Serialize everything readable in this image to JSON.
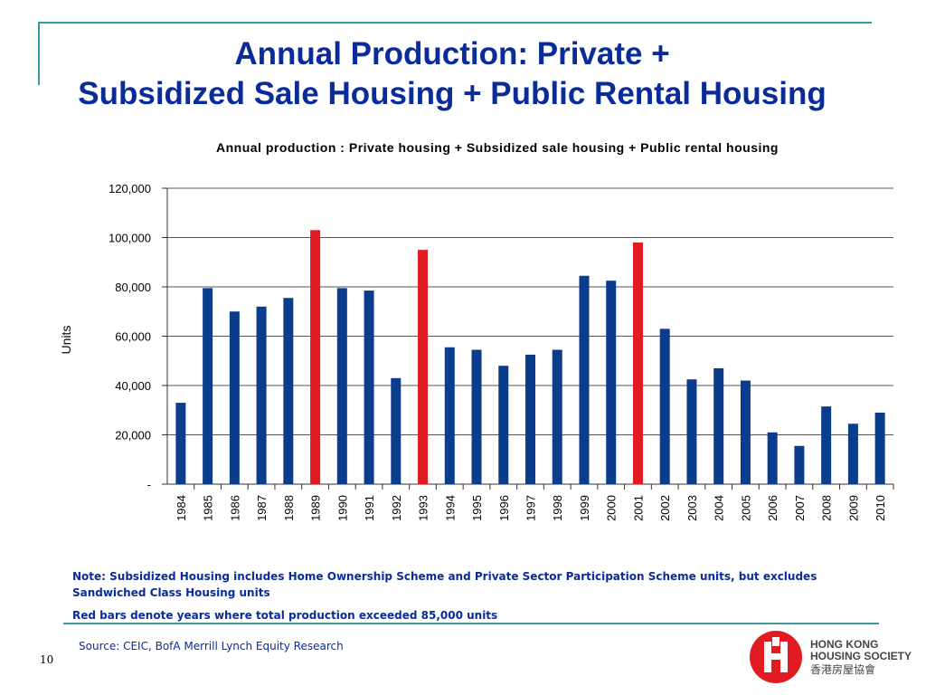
{
  "slide": {
    "title_line1": "Annual Production:  Private +",
    "title_line2": "Subsidized Sale Housing + Public Rental Housing",
    "page_number": "10"
  },
  "colors": {
    "title": "#0a2b9a",
    "frame": "#3a9aa0",
    "bar_normal": "#0b3d8c",
    "bar_highlight": "#e11b22",
    "note": "#0a2b9a",
    "red_note": "#0a2b9a",
    "source": "#0a2b9a",
    "logo_red": "#e11b22"
  },
  "chart_data": {
    "type": "bar",
    "title": "Annual production : Private housing + Subsidized sale housing + Public rental housing",
    "ylabel": "Units",
    "xlabel": "",
    "ylim": [
      0,
      120000
    ],
    "yticks": [
      0,
      20000,
      40000,
      60000,
      80000,
      100000,
      120000
    ],
    "ytick_labels": [
      "-",
      "20,000",
      "40,000",
      "60,000",
      "80,000",
      "100,000",
      "120,000"
    ],
    "grid": true,
    "categories": [
      "1984",
      "1985",
      "1986",
      "1987",
      "1988",
      "1989",
      "1990",
      "1991",
      "1992",
      "1993",
      "1994",
      "1995",
      "1996",
      "1997",
      "1998",
      "1999",
      "2000",
      "2001",
      "2002",
      "2003",
      "2004",
      "2005",
      "2006",
      "2007",
      "2008",
      "2009",
      "2010"
    ],
    "values": [
      33000,
      79500,
      70000,
      72000,
      75500,
      103000,
      79500,
      78500,
      43000,
      95000,
      55500,
      54500,
      48000,
      52500,
      54500,
      84500,
      82500,
      98000,
      63000,
      42500,
      47000,
      42000,
      21000,
      15500,
      31500,
      24500,
      29000
    ],
    "highlight_threshold": 85000
  },
  "notes": {
    "subsidized": "Note: Subsidized Housing includes Home Ownership Scheme and Private Sector Participation Scheme units, but excludes Sandwiched Class Housing units",
    "red_bars": "Red bars denote years where total production exceeded 85,000 units"
  },
  "source": "Source: CEIC, BofA Merrill Lynch Equity Research",
  "logo": {
    "line1": "HONG KONG",
    "line2": "HOUSING SOCIETY",
    "chinese": "香港房屋協會"
  }
}
